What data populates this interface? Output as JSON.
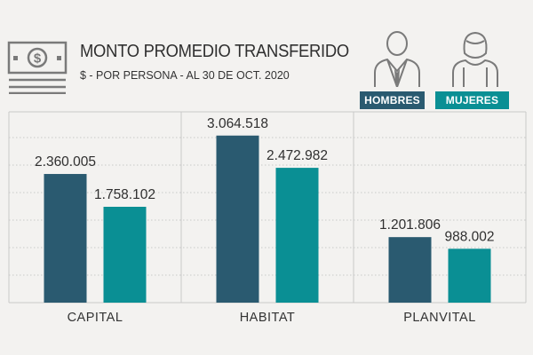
{
  "header": {
    "title": "MONTO PROMEDIO TRANSFERIDO",
    "subtitle": "$  - POR PERSONA - AL 30 DE OCT. 2020",
    "icon": "money-bill-icon"
  },
  "legend": {
    "men_label": "HOMBRES",
    "women_label": "MUJERES",
    "men_icon": "man-icon",
    "women_icon": "woman-icon"
  },
  "colors": {
    "men": "#2a5a70",
    "women": "#0a8f94",
    "grid": "#c9c9c9",
    "background": "#f3f2f0"
  },
  "chart_data": {
    "type": "bar",
    "title": "MONTO PROMEDIO TRANSFERIDO",
    "subtitle": "$  - POR PERSONA - AL 30 DE OCT. 2020",
    "categories": [
      "CAPITAL",
      "HABITAT",
      "PLANVITAL"
    ],
    "series": [
      {
        "name": "HOMBRES",
        "values": [
          2360005,
          3064518,
          1201806
        ],
        "labels": [
          "2.360.005",
          "3.064.518",
          "1.201.806"
        ]
      },
      {
        "name": "MUJERES",
        "values": [
          1758102,
          2472982,
          988002
        ],
        "labels": [
          "1.758.102",
          "2.472.982",
          "988.002"
        ]
      }
    ],
    "ylim": [
      0,
      3500000
    ],
    "grid": true,
    "legend_position": "top-right"
  }
}
